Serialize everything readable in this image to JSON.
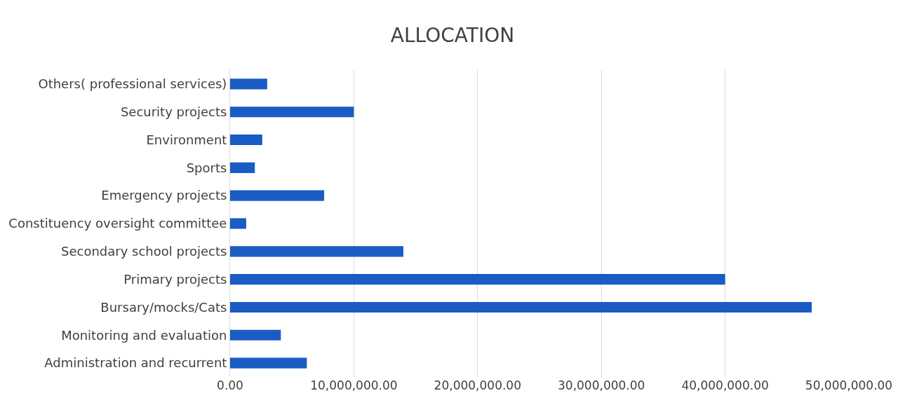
{
  "chart_data": {
    "type": "bar",
    "orientation": "horizontal",
    "title": "ALLOCATION",
    "categories": [
      "Others( professional services)",
      "Security projects",
      "Environment",
      "Sports",
      "Emergency projects",
      "Constituency oversight committee",
      "Secondary school projects",
      "Primary projects",
      "Bursary/mocks/Cats",
      "Monitoring and evaluation",
      "Administration and recurrent"
    ],
    "values": [
      3000000,
      10000000,
      2600000,
      2000000,
      7600000,
      1300000,
      14000000,
      40000000,
      47000000,
      4100000,
      6200000
    ],
    "color": "#1a5cc4",
    "xlim": [
      0,
      50000000
    ],
    "xticks": [
      {
        "value": 0,
        "label": "0.00"
      },
      {
        "value": 10000000,
        "label": "10,000,000.00"
      },
      {
        "value": 20000000,
        "label": "20,000,000.00"
      },
      {
        "value": 30000000,
        "label": "30,000,000.00"
      },
      {
        "value": 40000000,
        "label": "40,000,000.00"
      },
      {
        "value": 50000000,
        "label": "50,000,000.00"
      }
    ],
    "grid": "x"
  }
}
